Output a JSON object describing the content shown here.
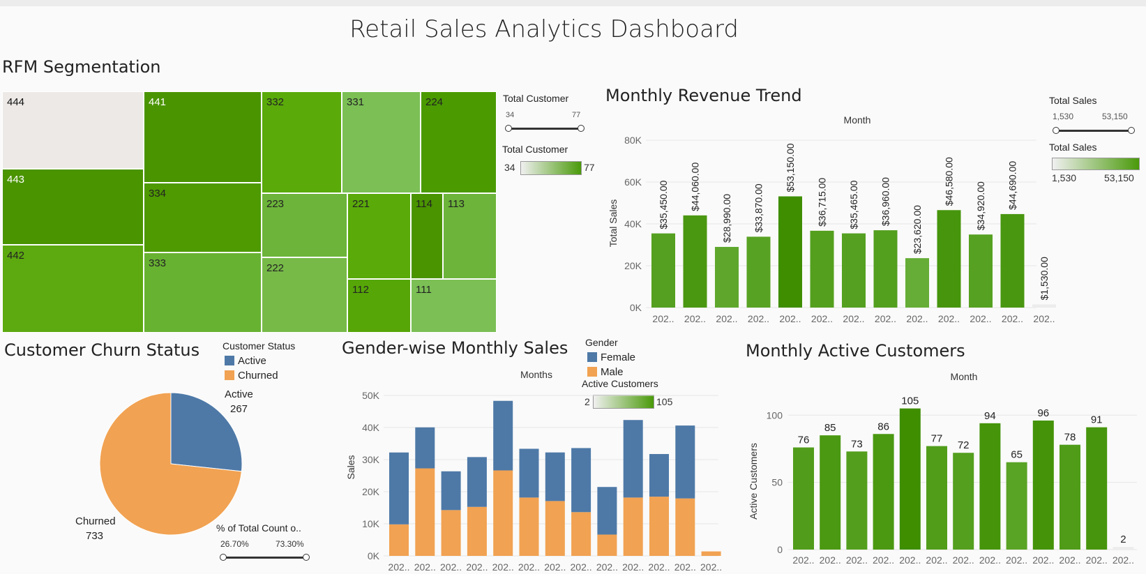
{
  "dashboard_title": "Retail Sales Analytics Dashboard",
  "rfm": {
    "title": "RFM Segmentation",
    "tiles": [
      "444",
      "441",
      "332",
      "331",
      "224",
      "443",
      "334",
      "223",
      "221",
      "114",
      "113",
      "442",
      "333",
      "222",
      "112",
      "111"
    ],
    "legend_size_title": "Total Customer",
    "legend_size_min": "34",
    "legend_size_max": "77",
    "legend_color_title": "Total Customer",
    "legend_color_min": "34",
    "legend_color_max": "77"
  },
  "revenue": {
    "title": "Monthly Revenue Trend",
    "header": "Month",
    "ylabel": "Total Sales",
    "legend_size_title": "Total Sales",
    "legend_size_min": "1,530",
    "legend_size_max": "53,150",
    "legend_color_title": "Total Sales",
    "legend_color_min": "1,530",
    "legend_color_max": "53,150"
  },
  "churn": {
    "title": "Customer Churn Status",
    "legend_title": "Customer Status",
    "legend_items": [
      "Active",
      "Churned"
    ],
    "active_label": "Active",
    "active_value": "267",
    "churned_label": "Churned",
    "churned_value": "733",
    "slider_title": "% of Total Count o..",
    "slider_min": "26.70%",
    "slider_max": "73.30%"
  },
  "gender": {
    "title": "Gender-wise Monthly Sales",
    "header": "Months",
    "ylabel": "Sales",
    "legend_title": "Gender",
    "legend_items": [
      "Female",
      "Male"
    ]
  },
  "active": {
    "title": "Monthly Active Customers",
    "header": "Month",
    "ylabel": "Active Customers",
    "legend_color_title": "Active Customers",
    "legend_color_min": "2",
    "legend_color_max": "105"
  },
  "colors": {
    "female": "#4e79a7",
    "male": "#f1a252",
    "green_dark": "#3f8f00",
    "green_light": "#7fc15a"
  },
  "chart_data": [
    {
      "type": "bar",
      "title": "Monthly Revenue Trend",
      "ylabel": "Total Sales",
      "categories": [
        "202..",
        "202..",
        "202..",
        "202..",
        "202..",
        "202..",
        "202..",
        "202..",
        "202..",
        "202..",
        "202..",
        "202..",
        "202.."
      ],
      "values": [
        35450,
        44060,
        28990,
        33870,
        53150,
        36715,
        35465,
        36960,
        23620,
        46580,
        34920,
        44690,
        1530
      ],
      "data_labels": [
        "$35,450.00",
        "$44,060.00",
        "$28,990.00",
        "$33,870.00",
        "$53,150.00",
        "$36,715.00",
        "$35,465.00",
        "$36,960.00",
        "$23,620.00",
        "$46,580.00",
        "$34,920.00",
        "$44,690.00",
        "$1,530.00"
      ],
      "yticks": [
        "0K",
        "20K",
        "40K",
        "60K",
        "80K"
      ],
      "ylim": [
        0,
        80000
      ]
    },
    {
      "type": "pie",
      "title": "Customer Churn Status",
      "labels": [
        "Active",
        "Churned"
      ],
      "values": [
        267,
        733
      ]
    },
    {
      "type": "bar",
      "stacked": true,
      "title": "Gender-wise Monthly Sales",
      "ylabel": "Sales",
      "categories": [
        "202..",
        "202..",
        "202..",
        "202..",
        "202..",
        "202..",
        "202..",
        "202..",
        "202..",
        "202..",
        "202..",
        "202..",
        "202.."
      ],
      "series": [
        {
          "name": "Male",
          "values": [
            10800,
            30000,
            15700,
            16800,
            29300,
            20000,
            18800,
            15000,
            7300,
            20000,
            20300,
            19700,
            1530
          ]
        },
        {
          "name": "Female",
          "values": [
            24650,
            14060,
            13290,
            17070,
            23850,
            16715,
            16665,
            21960,
            16320,
            26580,
            14620,
            24990,
            0
          ]
        }
      ],
      "yticks": [
        "0K",
        "10K",
        "20K",
        "30K",
        "40K",
        "50K"
      ],
      "ylim": [
        0,
        55000
      ]
    },
    {
      "type": "bar",
      "title": "Monthly Active Customers",
      "ylabel": "Active Customers",
      "categories": [
        "202..",
        "202..",
        "202..",
        "202..",
        "202..",
        "202..",
        "202..",
        "202..",
        "202..",
        "202..",
        "202..",
        "202..",
        "202.."
      ],
      "values": [
        76,
        85,
        73,
        86,
        105,
        77,
        72,
        94,
        65,
        96,
        78,
        91,
        2
      ],
      "yticks": [
        "0",
        "50",
        "100"
      ],
      "ylim": [
        0,
        110
      ]
    }
  ]
}
